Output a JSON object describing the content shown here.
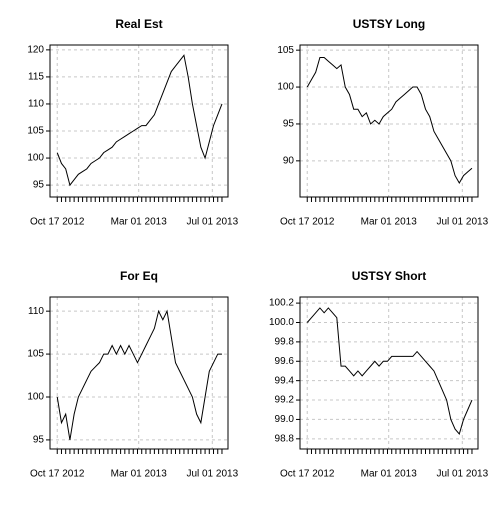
{
  "chart_data": [
    {
      "type": "line",
      "title": "Real Est",
      "x": [
        "2012-10-17",
        "2012-10-24",
        "2012-10-31",
        "2012-11-07",
        "2012-11-14",
        "2012-11-21",
        "2012-11-28",
        "2012-12-05",
        "2012-12-12",
        "2012-12-19",
        "2012-12-26",
        "2013-01-02",
        "2013-01-09",
        "2013-01-16",
        "2013-01-23",
        "2013-01-30",
        "2013-02-06",
        "2013-02-13",
        "2013-02-20",
        "2013-02-27",
        "2013-03-06",
        "2013-03-13",
        "2013-03-20",
        "2013-03-27",
        "2013-04-03",
        "2013-04-10",
        "2013-04-17",
        "2013-04-24",
        "2013-05-01",
        "2013-05-08",
        "2013-05-15",
        "2013-05-22",
        "2013-05-29",
        "2013-06-05",
        "2013-06-12",
        "2013-06-19",
        "2013-06-26",
        "2013-07-03",
        "2013-07-10",
        "2013-07-17"
      ],
      "series": [
        {
          "name": "Real Est",
          "color": "#000000",
          "values": [
            101,
            99,
            98,
            95,
            96,
            97,
            97.5,
            98,
            99,
            99.5,
            100,
            101,
            101.5,
            102,
            103,
            103.5,
            104,
            104.5,
            105,
            105.5,
            106,
            106,
            107,
            108,
            110,
            112,
            114,
            116,
            117,
            118,
            119,
            115,
            110,
            106,
            102,
            100,
            103,
            106,
            108,
            110
          ]
        }
      ],
      "xlim": [
        "2012-10-05",
        "2013-07-27"
      ],
      "xticks": [
        {
          "value": "2012-10-17",
          "label": "Oct 17 2012"
        },
        {
          "value": "2013-03-01",
          "label": "Mar 01 2013"
        },
        {
          "value": "2013-07-01",
          "label": "Jul 01 2013"
        }
      ],
      "ylim": [
        92.8,
        120.9
      ],
      "yticks": [
        95,
        100,
        105,
        110,
        115,
        120
      ],
      "grid": true
    },
    {
      "type": "line",
      "title": "USTSY Long",
      "x": [
        "2012-10-17",
        "2012-10-24",
        "2012-10-31",
        "2012-11-07",
        "2012-11-14",
        "2012-11-21",
        "2012-11-28",
        "2012-12-05",
        "2012-12-12",
        "2012-12-19",
        "2012-12-26",
        "2013-01-02",
        "2013-01-09",
        "2013-01-16",
        "2013-01-23",
        "2013-01-30",
        "2013-02-06",
        "2013-02-13",
        "2013-02-20",
        "2013-02-27",
        "2013-03-06",
        "2013-03-13",
        "2013-03-20",
        "2013-03-27",
        "2013-04-03",
        "2013-04-10",
        "2013-04-17",
        "2013-04-24",
        "2013-05-01",
        "2013-05-08",
        "2013-05-15",
        "2013-05-22",
        "2013-05-29",
        "2013-06-05",
        "2013-06-12",
        "2013-06-19",
        "2013-06-26",
        "2013-07-03",
        "2013-07-10",
        "2013-07-17"
      ],
      "series": [
        {
          "name": "USTSY Long",
          "color": "#000000",
          "values": [
            100,
            101,
            102,
            104,
            104,
            103.5,
            103,
            102.5,
            103,
            100,
            99,
            97,
            97,
            96,
            96.5,
            95,
            95.5,
            95,
            96,
            96.5,
            97,
            98,
            98.5,
            99,
            99.5,
            100,
            100,
            99,
            97,
            96,
            94,
            93,
            92,
            91,
            90,
            88,
            87,
            88,
            88.5,
            89
          ]
        }
      ],
      "xlim": [
        "2012-10-05",
        "2013-07-27"
      ],
      "xticks": [
        {
          "value": "2012-10-17",
          "label": "Oct 17 2012"
        },
        {
          "value": "2013-03-01",
          "label": "Mar 01 2013"
        },
        {
          "value": "2013-07-01",
          "label": "Jul 01 2013"
        }
      ],
      "ylim": [
        85.1,
        105.7
      ],
      "yticks": [
        90,
        95,
        100,
        105
      ],
      "grid": true
    },
    {
      "type": "line",
      "title": "For Eq",
      "x": [
        "2012-10-17",
        "2012-10-24",
        "2012-10-31",
        "2012-11-07",
        "2012-11-14",
        "2012-11-21",
        "2012-11-28",
        "2012-12-05",
        "2012-12-12",
        "2012-12-19",
        "2012-12-26",
        "2013-01-02",
        "2013-01-09",
        "2013-01-16",
        "2013-01-23",
        "2013-01-30",
        "2013-02-06",
        "2013-02-13",
        "2013-02-20",
        "2013-02-27",
        "2013-03-06",
        "2013-03-13",
        "2013-03-20",
        "2013-03-27",
        "2013-04-03",
        "2013-04-10",
        "2013-04-17",
        "2013-04-24",
        "2013-05-01",
        "2013-05-08",
        "2013-05-15",
        "2013-05-22",
        "2013-05-29",
        "2013-06-05",
        "2013-06-12",
        "2013-06-19",
        "2013-06-26",
        "2013-07-03",
        "2013-07-10",
        "2013-07-17"
      ],
      "series": [
        {
          "name": "For Eq",
          "color": "#000000",
          "values": [
            100,
            97,
            98,
            95,
            98,
            100,
            101,
            102,
            103,
            103.5,
            104,
            105,
            105,
            106,
            105,
            106,
            105,
            106,
            105,
            104,
            105,
            106,
            107,
            108,
            110,
            109,
            110,
            107,
            104,
            103,
            102,
            101,
            100,
            98,
            97,
            100,
            103,
            104,
            105,
            105
          ]
        }
      ],
      "xlim": [
        "2012-10-05",
        "2013-07-27"
      ],
      "xticks": [
        {
          "value": "2012-10-17",
          "label": "Oct 17 2012"
        },
        {
          "value": "2013-03-01",
          "label": "Mar 01 2013"
        },
        {
          "value": "2013-07-01",
          "label": "Jul 01 2013"
        }
      ],
      "ylim": [
        93.94,
        111.65
      ],
      "yticks": [
        95,
        100,
        105,
        110
      ],
      "grid": true
    },
    {
      "type": "line",
      "title": "USTSY Short",
      "x": [
        "2012-10-17",
        "2012-10-24",
        "2012-10-31",
        "2012-11-07",
        "2012-11-14",
        "2012-11-21",
        "2012-11-28",
        "2012-12-05",
        "2012-12-12",
        "2012-12-19",
        "2012-12-26",
        "2013-01-02",
        "2013-01-09",
        "2013-01-16",
        "2013-01-23",
        "2013-01-30",
        "2013-02-06",
        "2013-02-13",
        "2013-02-20",
        "2013-02-27",
        "2013-03-06",
        "2013-03-13",
        "2013-03-20",
        "2013-03-27",
        "2013-04-03",
        "2013-04-10",
        "2013-04-17",
        "2013-04-24",
        "2013-05-01",
        "2013-05-08",
        "2013-05-15",
        "2013-05-22",
        "2013-05-29",
        "2013-06-05",
        "2013-06-12",
        "2013-06-19",
        "2013-06-26",
        "2013-07-03",
        "2013-07-10",
        "2013-07-17"
      ],
      "series": [
        {
          "name": "USTSY Short",
          "color": "#000000",
          "values": [
            100.0,
            100.05,
            100.1,
            100.15,
            100.1,
            100.15,
            100.1,
            100.05,
            99.55,
            99.55,
            99.5,
            99.45,
            99.5,
            99.45,
            99.5,
            99.55,
            99.6,
            99.55,
            99.6,
            99.6,
            99.65,
            99.65,
            99.65,
            99.65,
            99.65,
            99.65,
            99.7,
            99.65,
            99.6,
            99.55,
            99.5,
            99.4,
            99.3,
            99.2,
            99.0,
            98.9,
            98.85,
            99.0,
            99.1,
            99.2
          ]
        }
      ],
      "xlim": [
        "2012-10-05",
        "2013-07-27"
      ],
      "xticks": [
        {
          "value": "2012-10-17",
          "label": "Oct 17 2012"
        },
        {
          "value": "2013-03-01",
          "label": "Mar 01 2013"
        },
        {
          "value": "2013-07-01",
          "label": "Jul 01 2013"
        }
      ],
      "ylim": [
        98.695,
        100.263
      ],
      "yticks": [
        98.8,
        {
          "value": 99,
          "label": "99.0"
        },
        99.2,
        99.4,
        99.6,
        99.8,
        {
          "value": 100,
          "label": "100.0"
        },
        100.2
      ],
      "grid": true
    }
  ]
}
